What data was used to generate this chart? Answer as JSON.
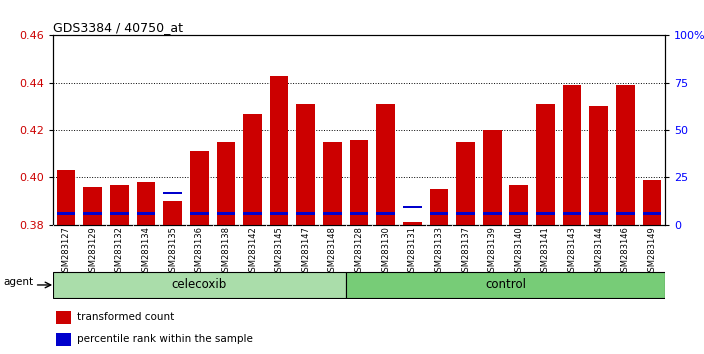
{
  "title": "GDS3384 / 40750_at",
  "samples": [
    "GSM283127",
    "GSM283129",
    "GSM283132",
    "GSM283134",
    "GSM283135",
    "GSM283136",
    "GSM283138",
    "GSM283142",
    "GSM283145",
    "GSM283147",
    "GSM283148",
    "GSM283128",
    "GSM283130",
    "GSM283131",
    "GSM283133",
    "GSM283137",
    "GSM283139",
    "GSM283140",
    "GSM283141",
    "GSM283143",
    "GSM283144",
    "GSM283146",
    "GSM283149"
  ],
  "red_values": [
    0.403,
    0.396,
    0.397,
    0.398,
    0.39,
    0.411,
    0.415,
    0.427,
    0.443,
    0.431,
    0.415,
    0.416,
    0.431,
    0.381,
    0.395,
    0.415,
    0.42,
    0.397,
    0.431,
    0.439,
    0.43,
    0.439,
    0.399
  ],
  "blue_heights": [
    0.001,
    0.001,
    0.001,
    0.001,
    0.001,
    0.001,
    0.001,
    0.001,
    0.001,
    0.001,
    0.001,
    0.001,
    0.001,
    0.001,
    0.001,
    0.001,
    0.001,
    0.001,
    0.001,
    0.001,
    0.001,
    0.001,
    0.001
  ],
  "blue_bottoms": [
    0.3843,
    0.3843,
    0.3843,
    0.3843,
    0.393,
    0.3843,
    0.3843,
    0.3843,
    0.3843,
    0.3843,
    0.3843,
    0.3843,
    0.3843,
    0.387,
    0.3843,
    0.3843,
    0.3843,
    0.3843,
    0.3843,
    0.3843,
    0.3843,
    0.3843,
    0.3843
  ],
  "celecoxib_count": 11,
  "control_count": 12,
  "ylim_left": [
    0.38,
    0.46
  ],
  "ylim_right": [
    0,
    100
  ],
  "yticks_left": [
    0.38,
    0.4,
    0.42,
    0.44,
    0.46
  ],
  "yticks_right": [
    0,
    25,
    50,
    75,
    100
  ],
  "ytick_labels_right": [
    "0",
    "25",
    "50",
    "75",
    "100%"
  ],
  "bar_bottom": 0.38,
  "bar_width": 0.7,
  "red_color": "#cc0000",
  "blue_color": "#0000cc",
  "celecoxib_bg": "#aaddaa",
  "control_bg": "#77cc77",
  "agent_label": "agent",
  "celecoxib_label": "celecoxib",
  "control_label": "control",
  "legend_red": "transformed count",
  "legend_blue": "percentile rank within the sample",
  "background_color": "#ffffff"
}
